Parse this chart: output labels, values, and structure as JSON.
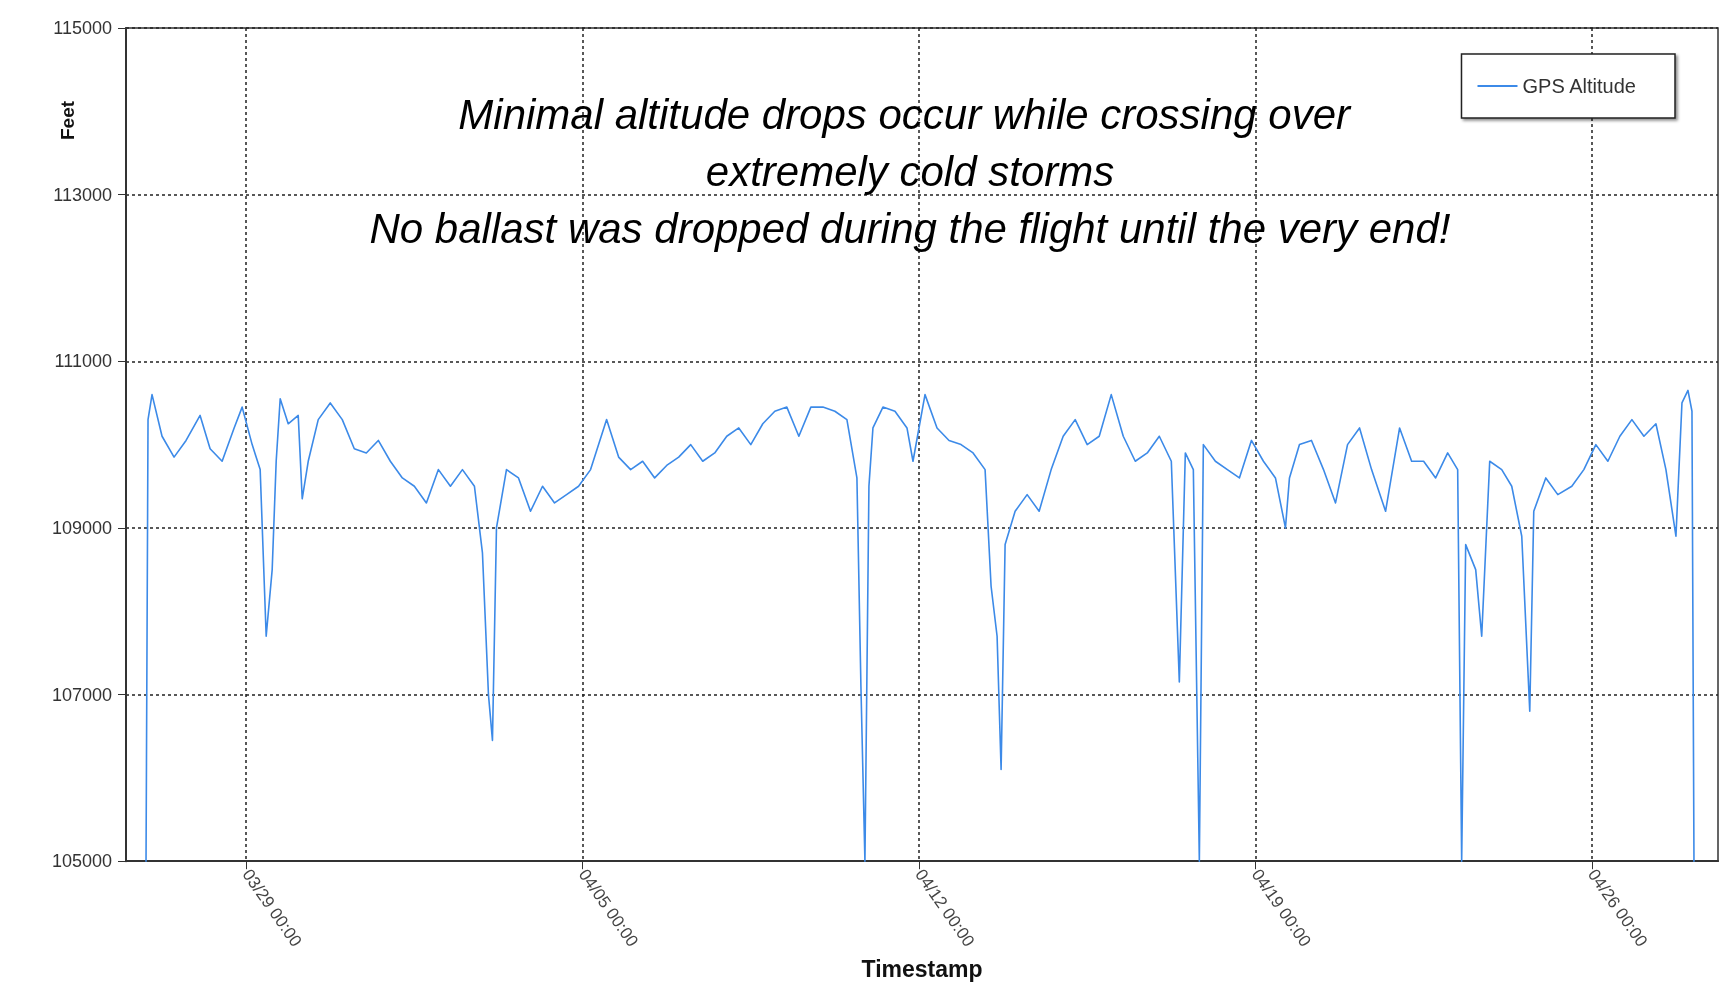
{
  "chart_data": {
    "type": "line",
    "xlabel": "Timestamp",
    "ylabel": "Feet",
    "annotations": [
      "Minimal altitude drops occur while crossing over extremely cold storms",
      "No ballast was dropped during the flight until the very end!"
    ],
    "x": [
      "--03-26T22:00",
      "--03-26T23:00",
      "--03-27T01:00",
      "--03-27T06:00",
      "--03-27T12:00",
      "--03-27T18:00",
      "--03-28T01:00",
      "--03-28T06:00",
      "--03-28T12:00",
      "--03-28T18:00",
      "--03-28T22:00",
      "--03-29T03:00",
      "--03-29T07:00",
      "--03-29T10:00",
      "--03-29T13:00",
      "--03-29T15:00",
      "--03-29T17:00",
      "--03-29T21:00",
      "--03-30T02:00",
      "--03-30T04:00",
      "--03-30T07:00",
      "--03-30T12:00",
      "--03-30T18:00",
      "--03-31T00:00",
      "--03-31T06:00",
      "--03-31T12:00",
      "--03-31T18:00",
      "--04-01T00:00",
      "--04-01T06:00",
      "--04-01T12:00",
      "--04-01T18:00",
      "--04-02T00:00",
      "--04-02T06:00",
      "--04-02T12:00",
      "--04-02T18:00",
      "--04-02T22:00",
      "--04-03T01:00",
      "--04-03T03:00",
      "--04-03T05:00",
      "--04-03T10:00",
      "--04-03T16:00",
      "--04-03T22:00",
      "--04-04T04:00",
      "--04-04T10:00",
      "--04-04T16:00",
      "--04-04T22:00",
      "--04-05T04:00",
      "--04-05T12:00",
      "--04-05T18:00",
      "--04-06T00:00",
      "--04-06T06:00",
      "--04-06T12:00",
      "--04-06T18:00",
      "--04-07T00:00",
      "--04-07T06:00",
      "--04-07T12:00",
      "--04-07T18:00",
      "--04-08T00:00",
      "--04-08T06:00",
      "--04-08T12:00",
      "--04-08T18:00",
      "--04-09T00:00",
      "--04-09T06:00",
      "--04-09T12:00",
      "--04-09T18:00",
      "--04-10T00:00",
      "--04-10T06:00",
      "--04-10T12:00",
      "--04-10T17:00",
      "--04-10T19:00",
      "--04-10T21:00",
      "--04-10T23:00",
      "--04-11T01:00",
      "--04-11T06:00",
      "--04-11T12:00",
      "--04-11T18:00",
      "--04-11T21:00",
      "--04-12T03:00",
      "--04-12T09:00",
      "--04-12T15:00",
      "--04-12T21:00",
      "--04-13T03:00",
      "--04-13T09:00",
      "--04-13T12:00",
      "--04-13T15:00",
      "--04-13T17:00",
      "--04-13T19:00",
      "--04-14T00:00",
      "--04-14T06:00",
      "--04-14T12:00",
      "--04-14T18:00",
      "--04-15T00:00",
      "--04-15T06:00",
      "--04-15T12:00",
      "--04-15T18:00",
      "--04-16T00:00",
      "--04-16T06:00",
      "--04-16T12:00",
      "--04-16T18:00",
      "--04-17T00:00",
      "--04-17T06:00",
      "--04-17T10:00",
      "--04-17T13:00",
      "--04-17T17:00",
      "--04-17T20:00",
      "--04-17T22:00",
      "--04-18T04:00",
      "--04-18T10:00",
      "--04-18T16:00",
      "--04-18T22:00",
      "--04-19T04:00",
      "--04-19T10:00",
      "--04-19T15:00",
      "--04-19T17:00",
      "--04-19T22:00",
      "--04-20T04:00",
      "--04-20T10:00",
      "--04-20T16:00",
      "--04-20T22:00",
      "--04-21T04:00",
      "--04-21T10:00",
      "--04-21T17:00",
      "--04-22T00:00",
      "--04-22T06:00",
      "--04-22T12:00",
      "--04-22T18:00",
      "--04-23T00:00",
      "--04-23T05:00",
      "--04-23T07:00",
      "--04-23T09:00",
      "--04-23T14:00",
      "--04-23T17:00",
      "--04-23T21:00",
      "--04-24T03:00",
      "--04-24T08:00",
      "--04-24T13:00",
      "--04-24T17:00",
      "--04-24T19:00",
      "--04-25T01:00",
      "--04-25T07:00",
      "--04-25T14:00",
      "--04-25T20:00",
      "--04-26T02:00",
      "--04-26T08:00",
      "--04-26T14:00",
      "--04-26T20:00",
      "--04-27T02:00",
      "--04-27T08:00",
      "--04-27T13:00",
      "--04-27T18:00",
      "--04-27T21:00",
      "--04-28T00:00",
      "--04-28T02:00",
      "--04-28T03:00"
    ],
    "series": [
      {
        "name": "GPS Altitude",
        "color": "#3c8ae8",
        "values": [
          105000,
          110300,
          110600,
          110100,
          109850,
          110050,
          110350,
          109950,
          109800,
          110200,
          110450,
          110000,
          109700,
          107700,
          108500,
          109800,
          110550,
          110250,
          110350,
          109350,
          109800,
          110300,
          110500,
          110300,
          109950,
          109900,
          110050,
          109800,
          109600,
          109500,
          109300,
          109700,
          109500,
          109700,
          109500,
          108700,
          107000,
          106450,
          109000,
          109700,
          109600,
          109200,
          109500,
          109300,
          109400,
          109500,
          109700,
          110300,
          109850,
          109700,
          109800,
          109600,
          109750,
          109850,
          110000,
          109800,
          109900,
          110100,
          110200,
          110000,
          110250,
          110400,
          110450,
          110100,
          110450,
          110450,
          110400,
          110300,
          109600,
          107100,
          105000,
          109500,
          110200,
          110450,
          110400,
          110200,
          109800,
          110600,
          110200,
          110050,
          110000,
          109900,
          109700,
          108300,
          107700,
          106100,
          108800,
          109200,
          109400,
          109200,
          109700,
          110100,
          110300,
          110000,
          110100,
          110600,
          110100,
          109800,
          109900,
          110100,
          109800,
          107150,
          109900,
          109700,
          105000,
          110000,
          109800,
          109700,
          109600,
          110050,
          109800,
          109600,
          109000,
          109600,
          110000,
          110050,
          109700,
          109300,
          110000,
          110200,
          109700,
          109200,
          110200,
          109800,
          109800,
          109600,
          109900,
          109700,
          105000,
          108800,
          108500,
          107700,
          109800,
          109700,
          109500,
          108900,
          106800,
          109200,
          109600,
          109400,
          109500,
          109700,
          110000,
          109800,
          110100,
          110300,
          110100,
          110250,
          109700,
          108900,
          110500,
          110650,
          110400,
          105000
        ]
      }
    ],
    "xlim": [
      "--03-26T12:00",
      "--04-28T15:00"
    ],
    "xticks": [
      {
        "value": "--03-29T00:00",
        "label": "03/29 00:00"
      },
      {
        "value": "--04-05T00:00",
        "label": "04/05 00:00"
      },
      {
        "value": "--04-12T00:00",
        "label": "04/12 00:00"
      },
      {
        "value": "--04-19T00:00",
        "label": "04/19 00:00"
      },
      {
        "value": "--04-26T00:00",
        "label": "04/26 00:00"
      }
    ],
    "ylim": [
      105000,
      115000
    ],
    "yticks": [
      105000,
      107000,
      109000,
      111000,
      113000,
      115000
    ],
    "grid": true,
    "legend": "top right",
    "line_style": "solid",
    "marker": "none"
  }
}
